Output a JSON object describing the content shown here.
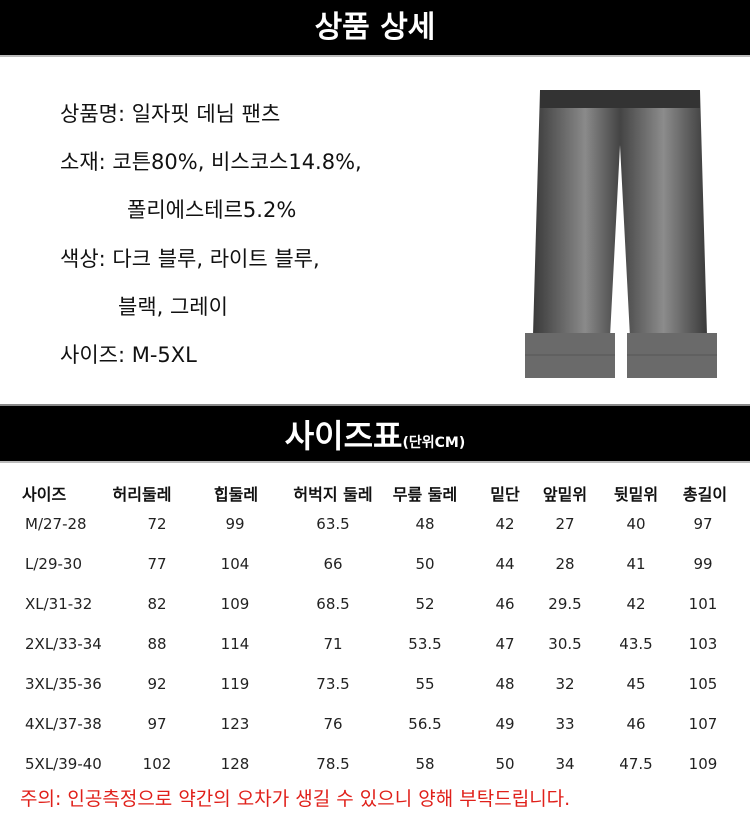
{
  "header": {
    "title": "상품 상세"
  },
  "product_info": [
    "상품명: 일자핏 데님 팬츠",
    "소재: 코튼80%, 비스코스14.8%,",
    "폴리에스테르5.2%",
    "색상: 다크 블루, 라이트 블루,",
    "블랙, 그레이",
    "사이즈: M-5XL"
  ],
  "product_image": {
    "alt": "gray straight-fit denim pants with rolled cuffs"
  },
  "size_chart": {
    "title": "사이즈표",
    "unit": "(단위CM)",
    "columns": [
      "사이즈",
      "허리둘레",
      "힙둘레",
      "허벅지 둘레",
      "무릎 둘레",
      "밑단",
      "앞밑위",
      "뒷밑위",
      "총길이"
    ],
    "rows": [
      [
        "M/27-28",
        "72",
        "99",
        "63.5",
        "48",
        "42",
        "27",
        "40",
        "97"
      ],
      [
        "L/29-30",
        "77",
        "104",
        "66",
        "50",
        "44",
        "28",
        "41",
        "99"
      ],
      [
        "XL/31-32",
        "82",
        "109",
        "68.5",
        "52",
        "46",
        "29.5",
        "42",
        "101"
      ],
      [
        "2XL/33-34",
        "88",
        "114",
        "71",
        "53.5",
        "47",
        "30.5",
        "43.5",
        "103"
      ],
      [
        "3XL/35-36",
        "92",
        "119",
        "73.5",
        "55",
        "48",
        "32",
        "45",
        "105"
      ],
      [
        "4XL/37-38",
        "97",
        "123",
        "76",
        "56.5",
        "49",
        "33",
        "46",
        "107"
      ],
      [
        "5XL/39-40",
        "102",
        "128",
        "78.5",
        "58",
        "50",
        "34",
        "47.5",
        "109"
      ]
    ]
  },
  "note": "주의: 인공측정으로 약간의 오차가 생길 수 있으니 양해 부탁드립니다.",
  "colors": {
    "header_bg": "#000000",
    "note": "#e0201a"
  }
}
